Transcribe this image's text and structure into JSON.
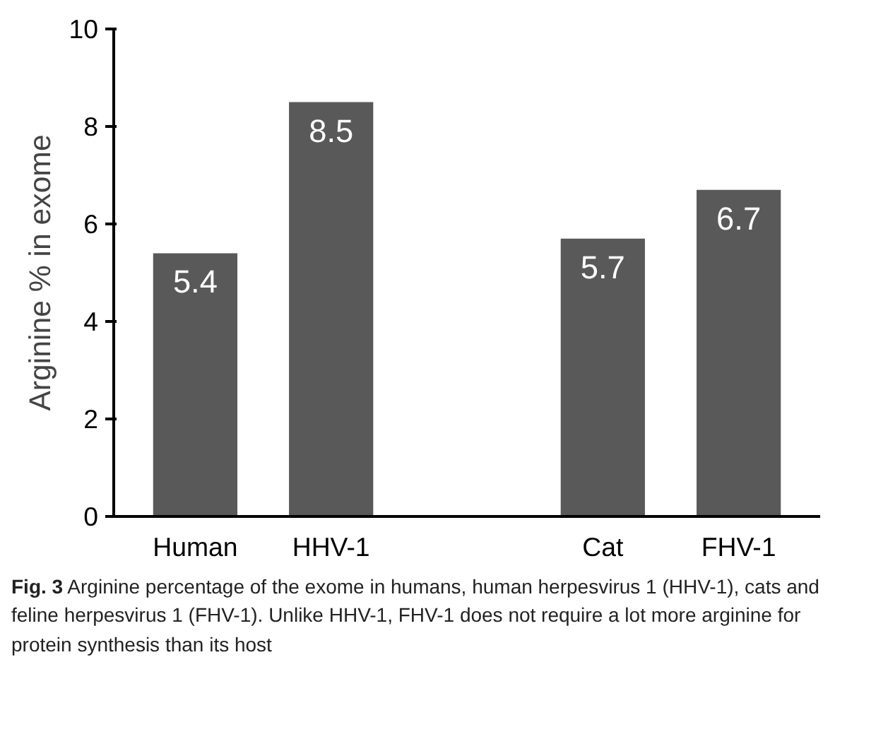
{
  "chart_data": {
    "type": "bar",
    "ylabel": "Arginine % in exome",
    "categories": [
      "Human",
      "HHV-1",
      null,
      "Cat",
      "FHV-1"
    ],
    "values": [
      5.4,
      8.5,
      null,
      5.7,
      6.7
    ],
    "color": "#595959",
    "data_labels": true,
    "ylim": [
      0,
      10
    ],
    "yticks": [
      0,
      2,
      4,
      6,
      8,
      10
    ],
    "grid": false,
    "annotations": [
      "Fig. 3 Arginine percentage of the exome in humans, human herpesvirus 1 (HHV-1), cats and feline herpesvirus 1 (FHV-1). Unlike HHV-1, FHV-1 does not require a lot more arginine for protein synthesis than its host"
    ]
  }
}
